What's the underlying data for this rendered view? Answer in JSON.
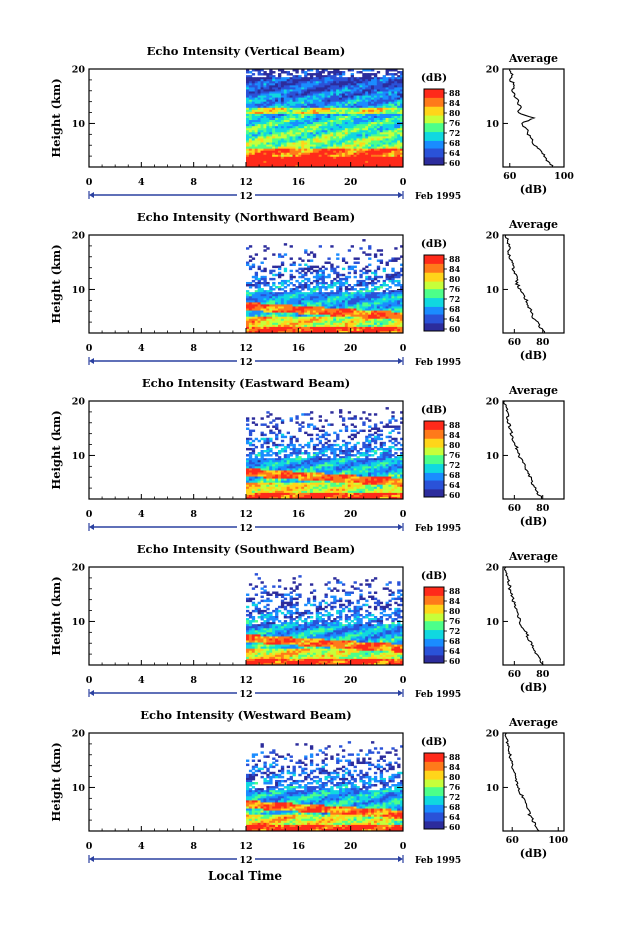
{
  "colorbar": {
    "unit_label": "(dB)",
    "ticks": [
      "88",
      "84",
      "80",
      "76",
      "72",
      "68",
      "64",
      "60"
    ],
    "colors": [
      "#ff2a1a",
      "#ff7a1a",
      "#ffd51a",
      "#c6ff3a",
      "#4cff8a",
      "#10d8e0",
      "#1a8cff",
      "#2a52d8",
      "#2c2c9c"
    ]
  },
  "x_axis": {
    "ticks": [
      "0",
      "4",
      "8",
      "12",
      "16",
      "20",
      "0"
    ],
    "date_label": "12",
    "month_label": "Feb 1995"
  },
  "y_axis": {
    "label": "Height (km)",
    "ticks": [
      "20",
      "10"
    ]
  },
  "avg_panel": {
    "title": "Average",
    "unit_label": "(dB)",
    "y_ticks": [
      "20",
      "10"
    ]
  },
  "xlabel": "Local Time",
  "chart_data": [
    {
      "type": "heatmap",
      "title": "Echo Intensity (Vertical Beam)",
      "x_range_hours": [
        0,
        24
      ],
      "data_start_hour": 12,
      "y_range_km": [
        2,
        20
      ],
      "color_range_db": [
        60,
        88
      ],
      "profile": {
        "type": "line",
        "title": "Average",
        "xlabel": "(dB)",
        "x_ticks": [
          "60",
          "100"
        ],
        "xlim": [
          55,
          100
        ],
        "ylim": [
          2,
          20
        ],
        "height_km": [
          2,
          3,
          4,
          5,
          6,
          7,
          8,
          9,
          10,
          11,
          12,
          13,
          14,
          15,
          16,
          17,
          18,
          19,
          20
        ],
        "db": [
          92,
          88,
          86,
          82,
          78,
          76,
          74,
          72,
          68,
          78,
          66,
          68,
          66,
          64,
          62,
          64,
          60,
          62,
          60
        ]
      }
    },
    {
      "type": "heatmap",
      "title": "Echo Intensity (Northward Beam)",
      "x_range_hours": [
        0,
        24
      ],
      "data_start_hour": 12,
      "y_range_km": [
        2,
        20
      ],
      "color_range_db": [
        60,
        88
      ],
      "profile": {
        "type": "line",
        "title": "Average",
        "xlabel": "(dB)",
        "x_ticks": [
          "60",
          "80"
        ],
        "xlim": [
          52,
          95
        ],
        "ylim": [
          2,
          20
        ],
        "height_km": [
          2,
          3,
          4,
          5,
          6,
          7,
          8,
          9,
          10,
          11,
          12,
          13,
          14,
          15,
          16,
          17,
          18,
          19,
          20
        ],
        "db": [
          82,
          78,
          76,
          73,
          72,
          70,
          69,
          66,
          64,
          62,
          62,
          60,
          59,
          58,
          57,
          56,
          56,
          55,
          54
        ]
      }
    },
    {
      "type": "heatmap",
      "title": "Echo Intensity (Eastward Beam)",
      "x_range_hours": [
        0,
        24
      ],
      "data_start_hour": 12,
      "y_range_km": [
        2,
        20
      ],
      "color_range_db": [
        60,
        88
      ],
      "profile": {
        "type": "line",
        "title": "Average",
        "xlabel": "(dB)",
        "x_ticks": [
          "60",
          "80"
        ],
        "xlim": [
          52,
          95
        ],
        "ylim": [
          2,
          20
        ],
        "height_km": [
          2,
          3,
          4,
          5,
          6,
          7,
          8,
          9,
          10,
          11,
          12,
          13,
          14,
          15,
          16,
          17,
          18,
          19,
          20
        ],
        "db": [
          80,
          77,
          75,
          72,
          71,
          69,
          68,
          65,
          63,
          62,
          61,
          59,
          58,
          57,
          56,
          55,
          55,
          54,
          53
        ]
      }
    },
    {
      "type": "heatmap",
      "title": "Echo Intensity (Southward Beam)",
      "x_range_hours": [
        0,
        24
      ],
      "data_start_hour": 12,
      "y_range_km": [
        2,
        20
      ],
      "color_range_db": [
        60,
        88
      ],
      "profile": {
        "type": "line",
        "title": "Average",
        "xlabel": "(dB)",
        "x_ticks": [
          "60",
          "80"
        ],
        "xlim": [
          52,
          95
        ],
        "ylim": [
          2,
          20
        ],
        "height_km": [
          2,
          3,
          4,
          5,
          6,
          7,
          8,
          9,
          10,
          11,
          12,
          13,
          14,
          15,
          16,
          17,
          18,
          19,
          20
        ],
        "db": [
          81,
          78,
          76,
          73,
          72,
          70,
          68,
          66,
          64,
          63,
          61,
          60,
          59,
          58,
          57,
          56,
          55,
          54,
          54
        ]
      }
    },
    {
      "type": "heatmap",
      "title": "Echo Intensity (Westward Beam)",
      "x_range_hours": [
        0,
        24
      ],
      "data_start_hour": 12,
      "y_range_km": [
        2,
        20
      ],
      "color_range_db": [
        60,
        88
      ],
      "profile": {
        "type": "line",
        "title": "Average",
        "xlabel": "(dB)",
        "x_ticks": [
          "60",
          "100"
        ],
        "xlim": [
          52,
          105
        ],
        "ylim": [
          2,
          20
        ],
        "height_km": [
          2,
          3,
          4,
          5,
          6,
          7,
          8,
          9,
          10,
          11,
          12,
          13,
          14,
          15,
          16,
          17,
          18,
          19,
          20
        ],
        "db": [
          84,
          80,
          78,
          75,
          74,
          72,
          70,
          67,
          65,
          64,
          63,
          61,
          60,
          59,
          58,
          57,
          56,
          55,
          55
        ]
      }
    }
  ]
}
